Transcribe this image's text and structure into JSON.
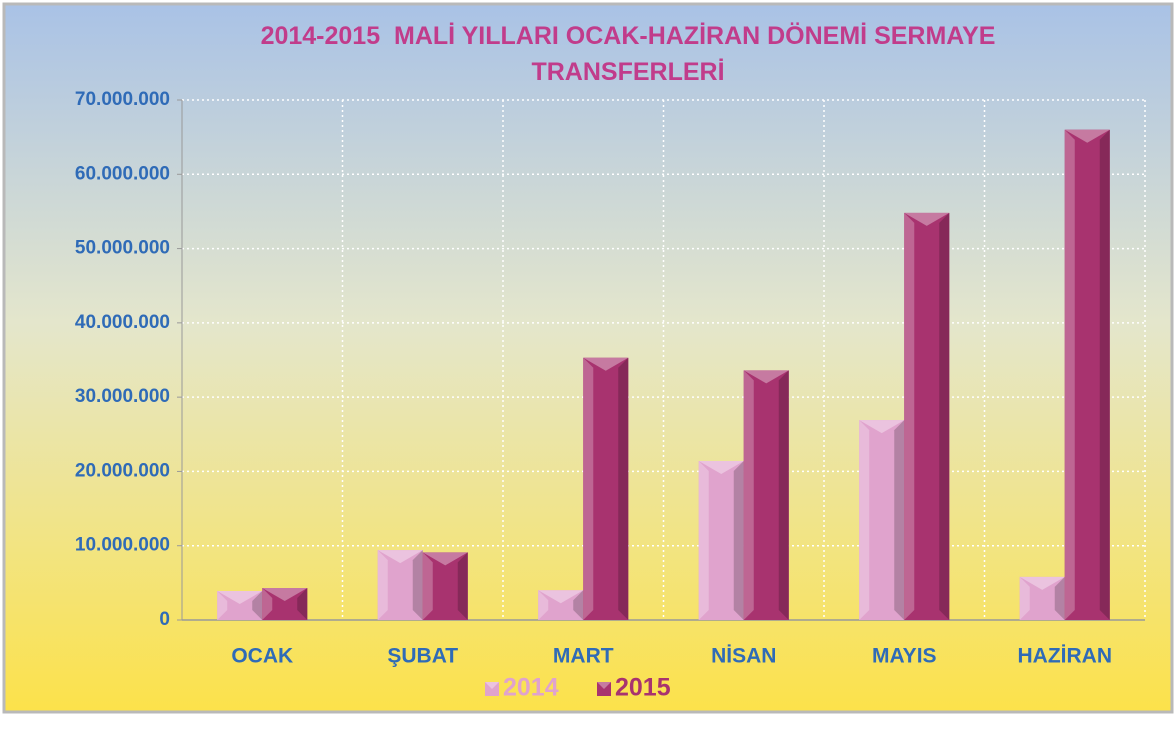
{
  "chart_data": {
    "type": "bar",
    "title": "2014-2015  MALİ YILLARI OCAK-HAZİRAN DÖNEMİ SERMAYE TRANSFERLERİ",
    "categories": [
      "OCAK",
      "ŞUBAT",
      "MART",
      "NİSAN",
      "MAYIS",
      "HAZİRAN"
    ],
    "series": [
      {
        "name": "2014",
        "color": "#e0a3cd",
        "values": [
          3900000,
          9400000,
          4000000,
          21400000,
          26900000,
          5800000
        ]
      },
      {
        "name": "2015",
        "color": "#a8336f",
        "values": [
          4300000,
          9100000,
          35300000,
          33600000,
          54800000,
          66000000
        ]
      }
    ],
    "ylim": [
      0,
      70000000
    ],
    "yticks": [
      0,
      {
        "value": 10000000,
        "label": "10.000.000"
      },
      {
        "value": 20000000,
        "label": "20.000.000"
      },
      {
        "value": 30000000,
        "label": "30.000.000"
      },
      {
        "value": 40000000,
        "label": "40.000.000"
      },
      {
        "value": 50000000,
        "label": "50.000.000"
      },
      {
        "value": 60000000,
        "label": "60.000.000"
      },
      {
        "value": 70000000,
        "label": "70.000.000"
      }
    ],
    "grid": true,
    "legend": "bottom"
  }
}
